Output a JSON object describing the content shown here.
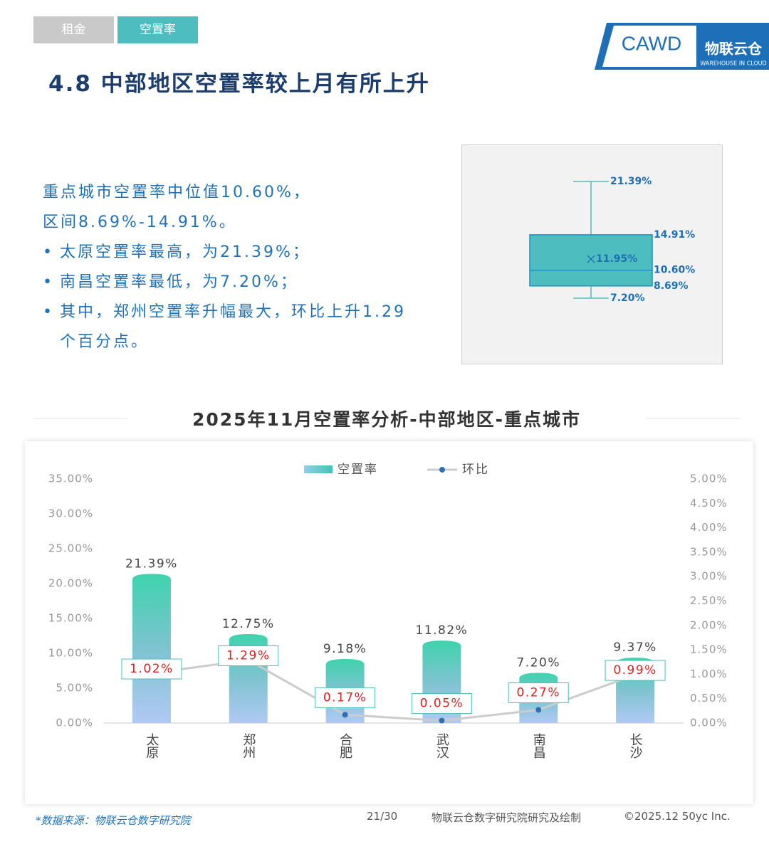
{
  "tabs": [
    "租金",
    "空置率"
  ],
  "logo": {
    "text": "CAWD",
    "brand": "物联云仓",
    "brand_sub": "WAREHOUSE IN CLOUD"
  },
  "heading": "4.8 中部地区空置率较上月有所上升",
  "summary": {
    "lines": [
      "重点城市空置率中位值10.60%，",
      "区间8.69%-14.91%。"
    ],
    "bullets": [
      "太原空置率最高，为21.39%；",
      "南昌空置率最低，为7.20%；",
      "其中，郑州空置率升幅最大，环比上升1.29个百分点。"
    ]
  },
  "chart_data": [
    {
      "type": "box",
      "values": [
        7.2,
        8.69,
        10.6,
        14.91,
        21.39
      ],
      "value_labels": [
        "7.20%",
        "8.69%",
        "10.60%",
        "14.91%",
        "21.39%"
      ],
      "mean": 11.95,
      "mean_label": "11.95%",
      "color": "#4dbdbf"
    },
    {
      "type": "bar_line",
      "title": "2025年11月空置率分析-中部地区-重点城市",
      "categories": [
        "太原",
        "郑州",
        "合肥",
        "武汉",
        "南昌",
        "长沙"
      ],
      "series": [
        {
          "name": "空置率",
          "color": "#40cfb0",
          "values": [
            21.39,
            12.75,
            9.18,
            11.82,
            7.2,
            9.37
          ],
          "value_labels": [
            "21.39%",
            "12.75%",
            "9.18%",
            "11.82%",
            "7.20%",
            "9.37%"
          ]
        },
        {
          "name": "环比",
          "color": "#cccccc",
          "axis": "y2",
          "values": [
            1.02,
            1.29,
            0.17,
            0.05,
            0.27,
            0.99
          ],
          "value_labels": [
            "1.02%",
            "1.29%",
            "0.17%",
            "0.05%",
            "0.27%",
            "0.99%"
          ]
        }
      ],
      "ylim": [
        0,
        35
      ],
      "yticks": [
        {
          "value": 0,
          "label": "0.00%"
        },
        {
          "value": 5,
          "label": "5.00%"
        },
        {
          "value": 10,
          "label": "10.00%"
        },
        {
          "value": 15,
          "label": "15.00%"
        },
        {
          "value": 20,
          "label": "20.00%"
        },
        {
          "value": 25,
          "label": "25.00%"
        },
        {
          "value": 30,
          "label": "30.00%"
        },
        {
          "value": 35,
          "label": "35.00%"
        }
      ],
      "y2lim": [
        0,
        5
      ],
      "y2ticks": [
        {
          "value": 0,
          "label": "0.00%"
        },
        {
          "value": 0.5,
          "label": "0.50%"
        },
        {
          "value": 1,
          "label": "1.00%"
        },
        {
          "value": 1.5,
          "label": "1.50%"
        },
        {
          "value": 2,
          "label": "2.00%"
        },
        {
          "value": 2.5,
          "label": "2.50%"
        },
        {
          "value": 3,
          "label": "3.00%"
        },
        {
          "value": 3.5,
          "label": "3.50%"
        },
        {
          "value": 4,
          "label": "4.00%"
        },
        {
          "value": 4.5,
          "label": "4.50%"
        },
        {
          "value": 5,
          "label": "5.00%"
        }
      ],
      "grid": false
    }
  ],
  "footer": {
    "source": "*数据来源：物联云仓数字研究院",
    "page": "21/30",
    "credit": "物联云仓数字研究院研究及绘制",
    "copyright": "©2025.12 50yc Inc."
  }
}
